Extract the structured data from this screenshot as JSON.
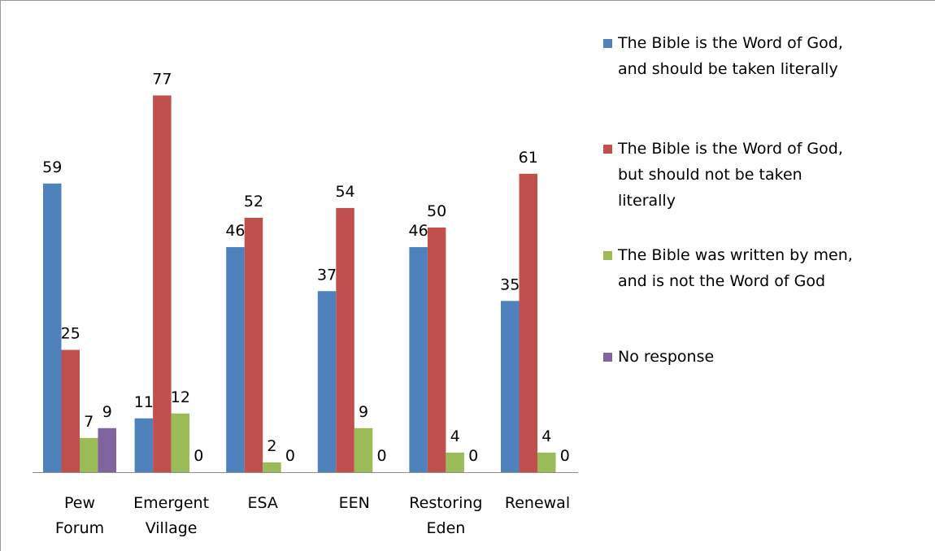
{
  "chart_data": {
    "type": "bar",
    "title": "",
    "xlabel": "",
    "ylabel": "",
    "ylim": [
      0,
      80
    ],
    "grid": false,
    "legend_position": "right",
    "categories": [
      [
        "Pew",
        "Forum"
      ],
      [
        "Emergent",
        "Village"
      ],
      [
        "ESA"
      ],
      [
        "EEN"
      ],
      [
        "Restoring",
        "Eden"
      ],
      [
        "Renewal"
      ]
    ],
    "series": [
      {
        "name": [
          "The Bible is the Word of God,",
          "and should be taken literally"
        ],
        "color": "#4f81bd",
        "values": [
          59,
          11,
          46,
          37,
          46,
          35
        ]
      },
      {
        "name": [
          "The Bible is the Word of God,",
          "but should not be taken",
          "literally"
        ],
        "color": "#c0504d",
        "values": [
          25,
          77,
          52,
          54,
          50,
          61
        ]
      },
      {
        "name": [
          "The Bible was written by men,",
          "and is not the Word of God"
        ],
        "color": "#9bbb59",
        "values": [
          7,
          12,
          2,
          9,
          4,
          4
        ]
      },
      {
        "name": [
          "No response"
        ],
        "color": "#8064a2",
        "values": [
          9,
          0,
          0,
          0,
          0,
          0
        ]
      }
    ]
  }
}
